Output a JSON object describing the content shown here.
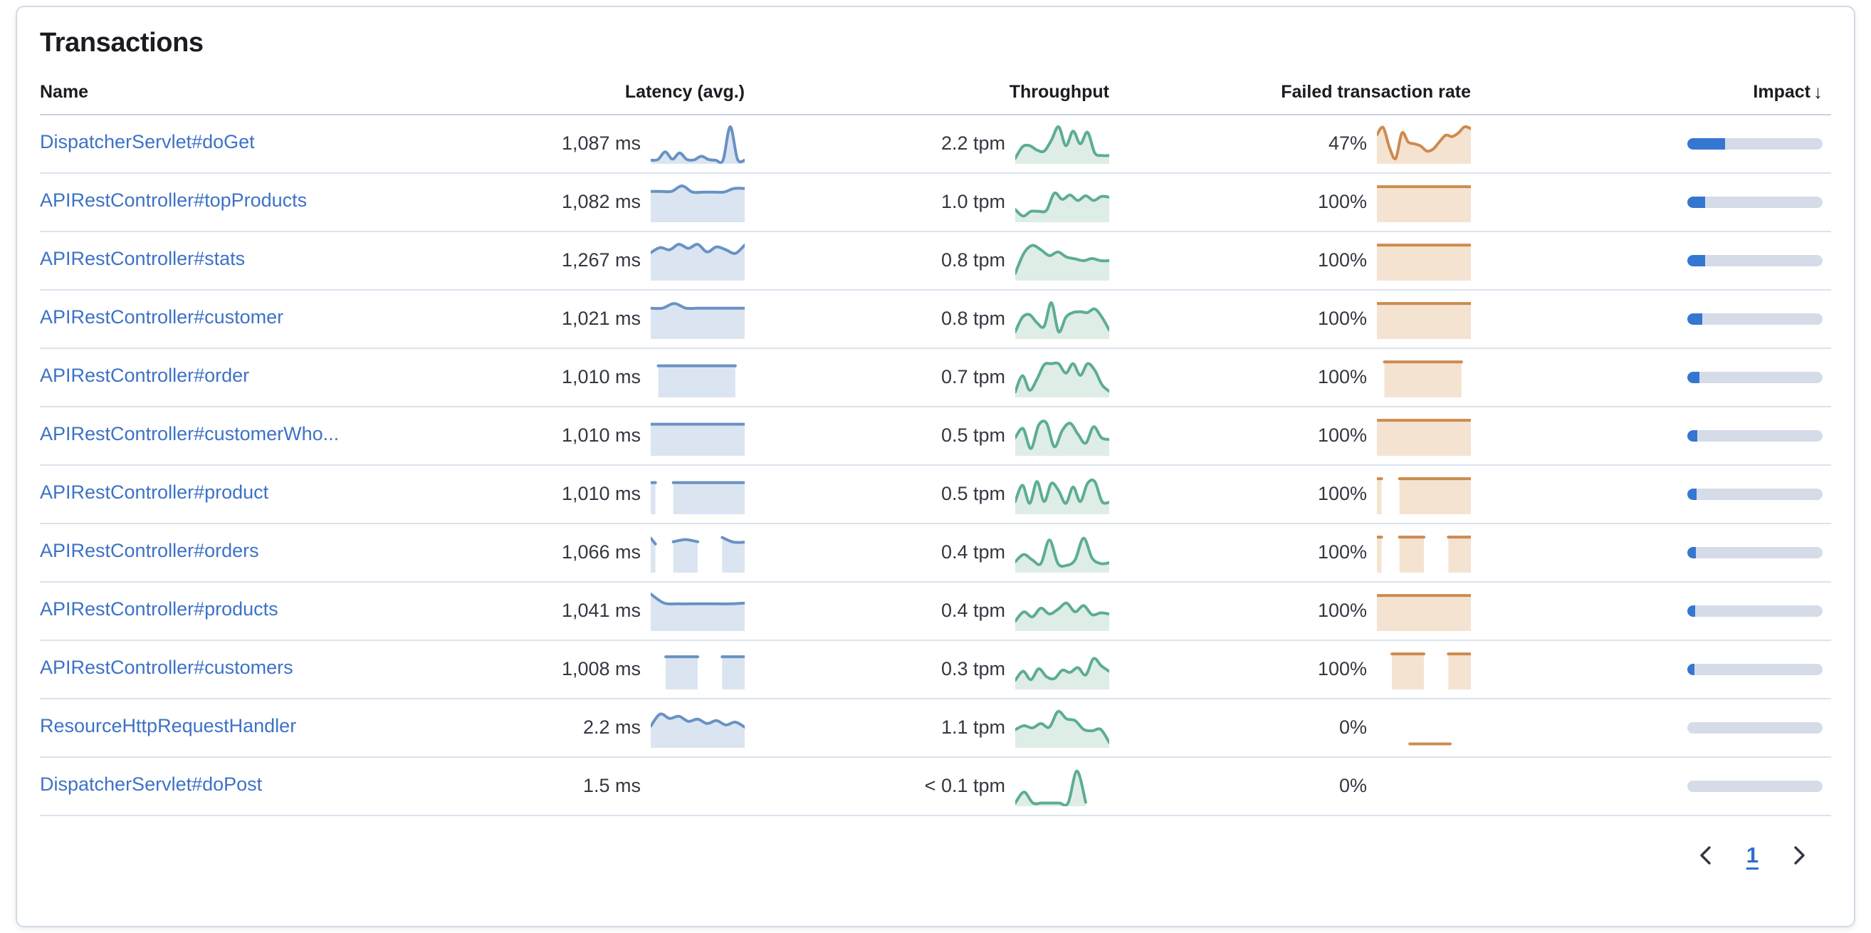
{
  "panel": {
    "title": "Transactions"
  },
  "colors": {
    "link_blue": "#3D72C6",
    "impact_fill": "#3576D1",
    "impact_track": "#D5DCE8",
    "latency_stroke": "#6992C4",
    "latency_fill": "#DBE5F1",
    "throughput_stroke": "#5CAD93",
    "throughput_fill": "#DFEDE7",
    "failed_stroke": "#CD8B4E",
    "failed_fill": "#F5E3D2"
  },
  "table": {
    "columns": [
      {
        "id": "name",
        "label": "Name"
      },
      {
        "id": "latency",
        "label": "Latency (avg.)"
      },
      {
        "id": "throughput",
        "label": "Throughput"
      },
      {
        "id": "failed",
        "label": "Failed transaction rate"
      },
      {
        "id": "impact",
        "label": "Impact",
        "sorted": "desc",
        "sort_icon": "↓"
      }
    ],
    "rows": [
      {
        "name": "DispatcherServlet#doGet",
        "latency": "1,087 ms",
        "throughput": "2.2 tpm",
        "failed": "47%",
        "impact_pct": 28,
        "latency_spark": {
          "fill": true,
          "segments": [
            [
              0,
              1,
              [
                0.05,
                0.07,
                0.28,
                0.08,
                0.25,
                0.07,
                0.06,
                0.16,
                0.07,
                0.05,
                0.05,
                0.97,
                0.08,
                0.05
              ]
            ]
          ]
        },
        "throughput_spark": {
          "fill": true,
          "segments": [
            [
              0,
              1,
              [
                0.1,
                0.42,
                0.45,
                0.33,
                0.3,
                0.6,
                0.97,
                0.45,
                0.85,
                0.5,
                0.82,
                0.25,
                0.18,
                0.18
              ]
            ]
          ]
        },
        "failed_spark": {
          "fill": true,
          "segments": [
            [
              0,
              1,
              [
                0.75,
                0.95,
                0.4,
                0.1,
                0.8,
                0.55,
                0.5,
                0.44,
                0.3,
                0.36,
                0.56,
                0.74,
                0.7,
                0.8,
                0.97,
                0.92
              ]
            ]
          ]
        }
      },
      {
        "name": "APIRestController#topProducts",
        "latency": "1,082 ms",
        "throughput": "1.0 tpm",
        "failed": "100%",
        "impact_pct": 13,
        "latency_spark": {
          "fill": true,
          "segments": [
            [
              0,
              1,
              [
                0.8,
                0.8,
                0.8,
                0.95,
                0.78,
                0.78,
                0.78,
                0.78,
                0.88,
                0.88
              ]
            ]
          ]
        },
        "throughput_spark": {
          "fill": true,
          "segments": [
            [
              0,
              1,
              [
                0.3,
                0.12,
                0.25,
                0.25,
                0.28,
                0.75,
                0.58,
                0.7,
                0.55,
                0.68,
                0.55,
                0.66,
                0.64
              ]
            ]
          ]
        },
        "failed_spark": {
          "fill": true,
          "segments": [
            [
              0,
              1,
              [
                0.93,
                0.93
              ]
            ]
          ]
        }
      },
      {
        "name": "APIRestController#stats",
        "latency": "1,267 ms",
        "throughput": "0.8 tpm",
        "failed": "100%",
        "impact_pct": 13,
        "latency_spark": {
          "fill": true,
          "segments": [
            [
              0,
              1,
              [
                0.72,
                0.86,
                0.8,
                0.95,
                0.84,
                0.95,
                0.74,
                0.88,
                0.8,
                0.7,
                0.93
              ]
            ]
          ]
        },
        "throughput_spark": {
          "fill": true,
          "segments": [
            [
              0,
              1,
              [
                0.15,
                0.7,
                0.92,
                0.8,
                0.64,
                0.74,
                0.6,
                0.55,
                0.5,
                0.56,
                0.5,
                0.5
              ]
            ]
          ]
        },
        "failed_spark": {
          "fill": true,
          "segments": [
            [
              0,
              1,
              [
                0.93,
                0.93
              ]
            ]
          ]
        }
      },
      {
        "name": "APIRestController#customer",
        "latency": "1,021 ms",
        "throughput": "0.8 tpm",
        "failed": "100%",
        "impact_pct": 11,
        "latency_spark": {
          "fill": true,
          "segments": [
            [
              0,
              1,
              [
                0.8,
                0.8,
                0.93,
                0.8,
                0.8,
                0.8,
                0.8,
                0.8,
                0.8
              ]
            ]
          ]
        },
        "throughput_spark": {
          "fill": true,
          "segments": [
            [
              0,
              1,
              [
                0.15,
                0.55,
                0.62,
                0.4,
                0.3,
                0.95,
                0.15,
                0.55,
                0.68,
                0.7,
                0.68,
                0.78,
                0.55,
                0.2
              ]
            ]
          ]
        },
        "failed_spark": {
          "fill": true,
          "segments": [
            [
              0,
              1,
              [
                0.93,
                0.93
              ]
            ]
          ]
        }
      },
      {
        "name": "APIRestController#order",
        "latency": "1,010 ms",
        "throughput": "0.7 tpm",
        "failed": "100%",
        "impact_pct": 9,
        "latency_spark": {
          "fill": true,
          "segments": [
            [
              0.08,
              0.9,
              [
                0.82,
                0.82
              ]
            ]
          ]
        },
        "throughput_spark": {
          "fill": true,
          "segments": [
            [
              0,
              1,
              [
                0.1,
                0.55,
                0.15,
                0.45,
                0.85,
                0.88,
                0.88,
                0.62,
                0.88,
                0.56,
                0.88,
                0.7,
                0.3,
                0.12
              ]
            ]
          ]
        },
        "failed_spark": {
          "fill": true,
          "segments": [
            [
              0.08,
              0.9,
              [
                0.93,
                0.93
              ]
            ]
          ]
        }
      },
      {
        "name": "APIRestController#customerWho...",
        "latency": "1,010 ms",
        "throughput": "0.5 tpm",
        "failed": "100%",
        "impact_pct": 7.5,
        "latency_spark": {
          "fill": true,
          "segments": [
            [
              0,
              1,
              [
                0.82,
                0.82
              ]
            ]
          ]
        },
        "throughput_spark": {
          "fill": true,
          "segments": [
            [
              0,
              1,
              [
                0.45,
                0.7,
                0.15,
                0.8,
                0.85,
                0.2,
                0.65,
                0.85,
                0.55,
                0.3,
                0.75,
                0.45,
                0.4
              ]
            ]
          ]
        },
        "failed_spark": {
          "fill": true,
          "segments": [
            [
              0,
              1,
              [
                0.93,
                0.93
              ]
            ]
          ]
        }
      },
      {
        "name": "APIRestController#product",
        "latency": "1,010 ms",
        "throughput": "0.5 tpm",
        "failed": "100%",
        "impact_pct": 7,
        "latency_spark": {
          "fill": true,
          "segments": [
            [
              0,
              0.05,
              [
                0.82,
                0.82
              ]
            ],
            [
              0.24,
              1,
              [
                0.82,
                0.82
              ]
            ]
          ]
        },
        "throughput_spark": {
          "fill": true,
          "segments": [
            [
              0,
              1,
              [
                0.3,
                0.75,
                0.25,
                0.85,
                0.3,
                0.8,
                0.6,
                0.25,
                0.7,
                0.3,
                0.8,
                0.85,
                0.3,
                0.28
              ]
            ]
          ]
        },
        "failed_spark": {
          "fill": true,
          "segments": [
            [
              0,
              0.05,
              [
                0.93,
                0.93
              ]
            ],
            [
              0.24,
              1,
              [
                0.93,
                0.93
              ]
            ]
          ]
        }
      },
      {
        "name": "APIRestController#orders",
        "latency": "1,066 ms",
        "throughput": "0.4 tpm",
        "failed": "100%",
        "impact_pct": 6.5,
        "latency_spark": {
          "fill": true,
          "segments": [
            [
              0,
              0.05,
              [
                0.9,
                0.74
              ]
            ],
            [
              0.24,
              0.5,
              [
                0.8,
                0.86,
                0.8
              ]
            ],
            [
              0.76,
              1,
              [
                0.92,
                0.79,
                0.79
              ]
            ]
          ]
        },
        "throughput_spark": {
          "fill": true,
          "segments": [
            [
              0,
              1,
              [
                0.25,
                0.45,
                0.3,
                0.2,
                0.85,
                0.2,
                0.15,
                0.3,
                0.9,
                0.35,
                0.2,
                0.22
              ]
            ]
          ]
        },
        "failed_spark": {
          "fill": true,
          "segments": [
            [
              0,
              0.05,
              [
                0.93,
                0.93
              ]
            ],
            [
              0.24,
              0.5,
              [
                0.93,
                0.93
              ]
            ],
            [
              0.76,
              1,
              [
                0.93,
                0.93
              ]
            ]
          ]
        }
      },
      {
        "name": "APIRestController#products",
        "latency": "1,041 ms",
        "throughput": "0.4 tpm",
        "failed": "100%",
        "impact_pct": 6,
        "latency_spark": {
          "fill": true,
          "segments": [
            [
              0,
              1,
              [
                0.97,
                0.72,
                0.7,
                0.7,
                0.7,
                0.7,
                0.7,
                0.72
              ]
            ]
          ]
        },
        "throughput_spark": {
          "fill": true,
          "segments": [
            [
              0,
              1,
              [
                0.22,
                0.48,
                0.34,
                0.58,
                0.42,
                0.55,
                0.72,
                0.48,
                0.65,
                0.4,
                0.45,
                0.42
              ]
            ]
          ]
        },
        "failed_spark": {
          "fill": true,
          "segments": [
            [
              0,
              1,
              [
                0.93,
                0.93
              ]
            ]
          ]
        }
      },
      {
        "name": "APIRestController#customers",
        "latency": "1,008 ms",
        "throughput": "0.3 tpm",
        "failed": "100%",
        "impact_pct": 5.5,
        "latency_spark": {
          "fill": true,
          "segments": [
            [
              0.16,
              0.5,
              [
                0.85,
                0.85
              ]
            ],
            [
              0.76,
              1,
              [
                0.85,
                0.85
              ]
            ]
          ]
        },
        "throughput_spark": {
          "fill": true,
          "segments": [
            [
              0,
              1,
              [
                0.2,
                0.45,
                0.22,
                0.52,
                0.3,
                0.25,
                0.48,
                0.42,
                0.55,
                0.35,
                0.8,
                0.6,
                0.45
              ]
            ]
          ]
        },
        "failed_spark": {
          "fill": true,
          "segments": [
            [
              0.16,
              0.5,
              [
                0.93,
                0.93
              ]
            ],
            [
              0.76,
              1,
              [
                0.93,
                0.93
              ]
            ]
          ]
        }
      },
      {
        "name": "ResourceHttpRequestHandler",
        "latency": "2.2 ms",
        "throughput": "1.1 tpm",
        "failed": "0%",
        "impact_pct": 0,
        "latency_spark": {
          "fill": true,
          "segments": [
            [
              0,
              1,
              [
                0.55,
                0.88,
                0.76,
                0.82,
                0.68,
                0.74,
                0.62,
                0.7,
                0.58,
                0.66,
                0.52
              ]
            ]
          ]
        },
        "throughput_spark": {
          "fill": true,
          "segments": [
            [
              0,
              1,
              [
                0.45,
                0.56,
                0.5,
                0.62,
                0.52,
                0.95,
                0.75,
                0.7,
                0.46,
                0.42,
                0.46,
                0.1
              ]
            ]
          ]
        },
        "failed_spark": {
          "fill": false,
          "segments": [
            [
              0.35,
              0.78,
              [
                0.06,
                0.06
              ]
            ]
          ]
        }
      },
      {
        "name": "DispatcherServlet#doPost",
        "latency": "1.5 ms",
        "throughput": "< 0.1 tpm",
        "failed": "0%",
        "impact_pct": 0,
        "latency_spark": {
          "fill": true,
          "segments": []
        },
        "throughput_spark": {
          "fill": true,
          "segments": [
            [
              0,
              0.75,
              [
                0.04,
                0.34,
                0.04,
                0.04,
                0.04,
                0.04,
                0.04,
                0.92,
                0.06
              ]
            ]
          ]
        },
        "failed_spark": {
          "fill": true,
          "segments": []
        }
      }
    ]
  },
  "pagination": {
    "page": "1",
    "prev_icon": "chevron-left",
    "next_icon": "chevron-right"
  }
}
